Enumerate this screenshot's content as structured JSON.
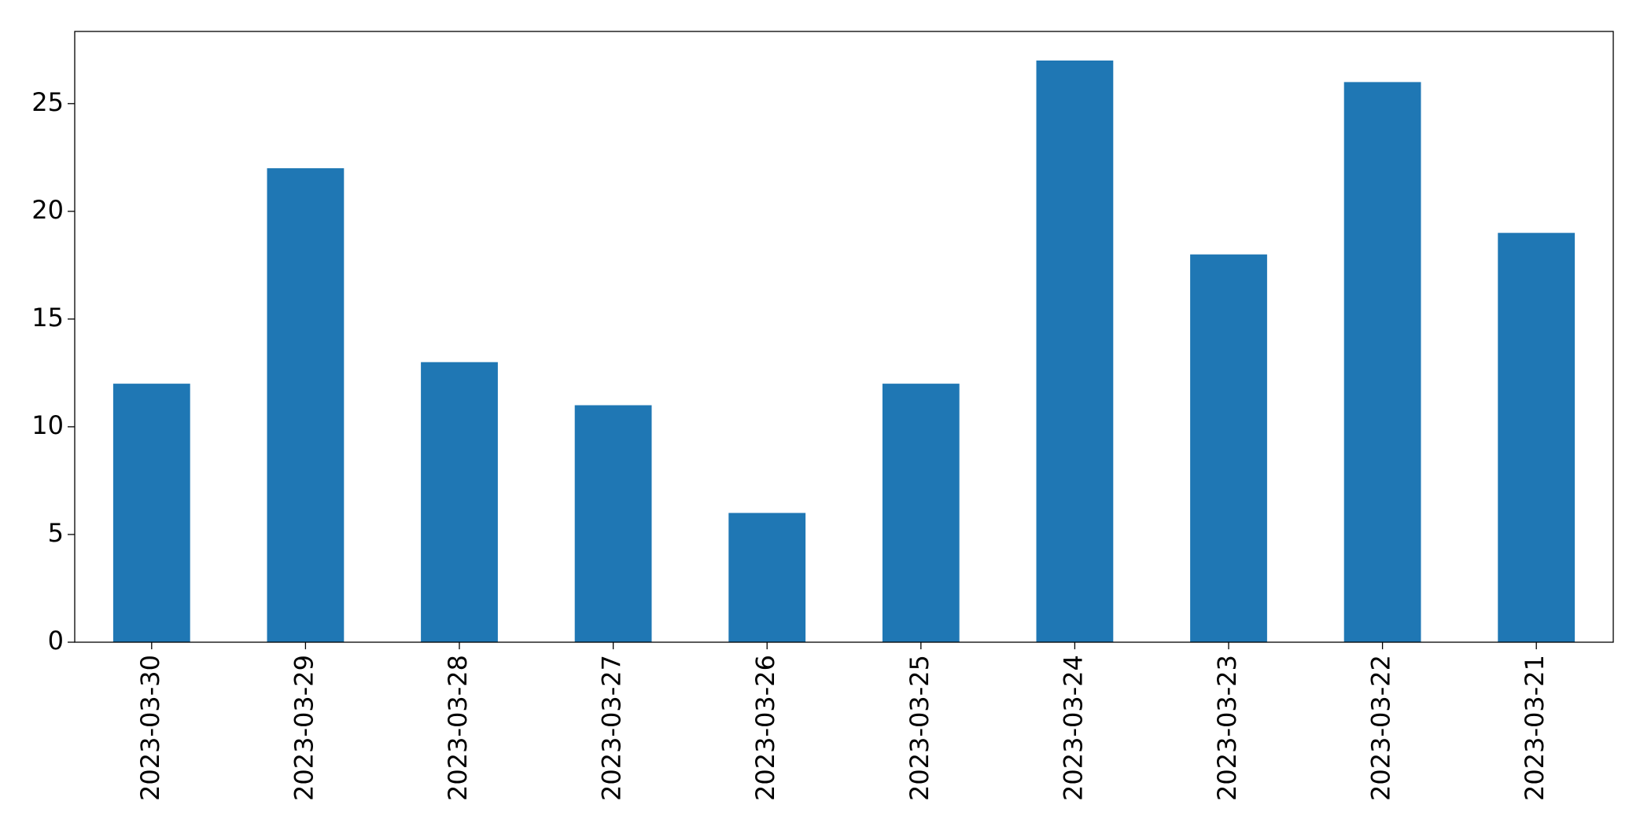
{
  "chart_data": {
    "type": "bar",
    "categories": [
      "2023-03-30",
      "2023-03-29",
      "2023-03-28",
      "2023-03-27",
      "2023-03-26",
      "2023-03-25",
      "2023-03-24",
      "2023-03-23",
      "2023-03-22",
      "2023-03-21"
    ],
    "values": [
      12,
      22,
      13,
      11,
      6,
      12,
      27,
      18,
      26,
      19
    ],
    "color": "#1f77b4",
    "ylim": [
      0,
      28.35
    ],
    "yticks": [
      0,
      5,
      10,
      15,
      20,
      25
    ],
    "grid": false
  }
}
